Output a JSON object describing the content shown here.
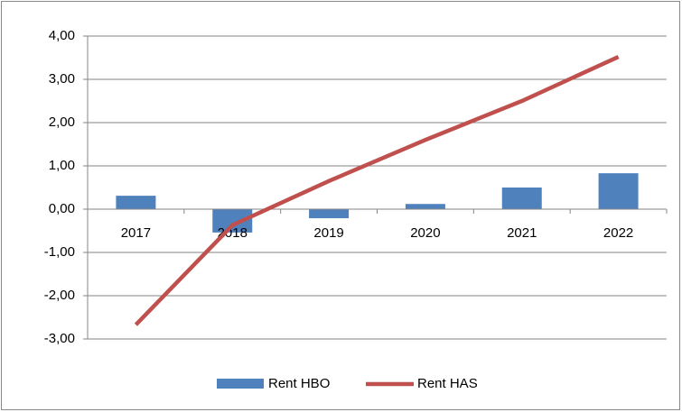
{
  "chart_data": {
    "type": "bar_line",
    "categories": [
      "2017",
      "2018",
      "2019",
      "2020",
      "2021",
      "2022"
    ],
    "series": [
      {
        "name": "Rent HBO",
        "type": "bar",
        "color": "#4f81bd",
        "values": [
          0.31,
          -0.54,
          -0.21,
          0.12,
          0.5,
          0.83
        ]
      },
      {
        "name": "Rent HAS",
        "type": "line",
        "color": "#c0504d",
        "values": [
          -2.67,
          -0.37,
          0.65,
          1.6,
          2.5,
          3.52
        ]
      }
    ],
    "ylim": [
      -3,
      4
    ],
    "yticks": [
      {
        "value": -3,
        "label": "-3,00"
      },
      {
        "value": -2,
        "label": "-2,00"
      },
      {
        "value": -1,
        "label": "-1,00"
      },
      {
        "value": 0,
        "label": "0,00"
      },
      {
        "value": 1,
        "label": "1,00"
      },
      {
        "value": 2,
        "label": "2,00"
      },
      {
        "value": 3,
        "label": "3,00"
      },
      {
        "value": 4,
        "label": "4,00"
      }
    ],
    "grid": true,
    "negative_tick_color": "#ff0000",
    "legend": "bottom"
  }
}
